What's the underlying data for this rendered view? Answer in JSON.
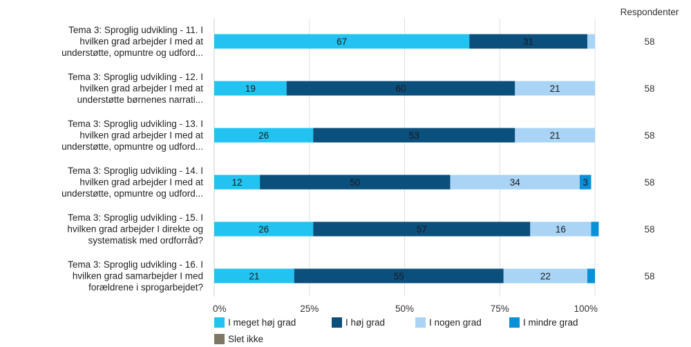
{
  "chart_data": {
    "type": "bar",
    "orientation": "horizontal",
    "stacked": "percent",
    "categories": [
      [
        "Tema 3: Sproglig udvikling - 11. I",
        "hvilken grad arbejder I med at",
        "understøtte, opmuntre og udford..."
      ],
      [
        "Tema 3: Sproglig udvikling - 12. I",
        "hvilken grad arbejder I med at",
        "understøtte børnenes narrati..."
      ],
      [
        "Tema 3: Sproglig udvikling - 13. I",
        "hvilken grad arbejder I med at",
        "understøtte, opmuntre og udford..."
      ],
      [
        "Tema 3: Sproglig udvikling - 14. I",
        "hvilken grad arbejder I med at",
        "understøtte, opmuntre og udford..."
      ],
      [
        "Tema 3: Sproglig udvikling - 15. I",
        "hvilken grad arbejder I direkte og",
        "systematisk med ordforråd?"
      ],
      [
        "Tema 3: Sproglig udvikling - 16. I",
        "hvilken grad samarbejder I med",
        "forældrene i sprogarbejdet?"
      ]
    ],
    "series": [
      {
        "name": "I meget høj grad",
        "color": "#22c3f0",
        "values": [
          67,
          19,
          26,
          12,
          26,
          21
        ],
        "labels": [
          "67",
          "19",
          "26",
          "12",
          "26",
          "21"
        ]
      },
      {
        "name": "I høj grad",
        "color": "#0b4f7c",
        "values": [
          31,
          60,
          53,
          50,
          57,
          55
        ],
        "labels": [
          "31",
          "60",
          "53",
          "50",
          "57",
          "55"
        ]
      },
      {
        "name": "I nogen grad",
        "color": "#a9d4f5",
        "values": [
          2,
          21,
          21,
          34,
          16,
          22
        ],
        "labels": [
          "",
          "21",
          "21",
          "34",
          "16",
          "22"
        ]
      },
      {
        "name": "I mindre grad",
        "color": "#0891d8",
        "values": [
          0,
          0,
          0,
          3,
          2,
          2
        ],
        "labels": [
          "",
          "",
          "",
          "3",
          "",
          ""
        ]
      },
      {
        "name": "Slet ikke",
        "color": "#7d7866",
        "values": [
          0,
          0,
          0,
          0,
          0,
          0
        ],
        "labels": [
          "",
          "",
          "",
          "",
          "",
          ""
        ]
      }
    ],
    "xlim": [
      0,
      100
    ],
    "xticks": [
      "0%",
      "25%",
      "50%",
      "75%",
      "100%"
    ],
    "grid": true,
    "legend": "bottom",
    "respondents_header": "Respondenter",
    "respondents": [
      "58",
      "58",
      "58",
      "58",
      "58",
      "58"
    ]
  }
}
